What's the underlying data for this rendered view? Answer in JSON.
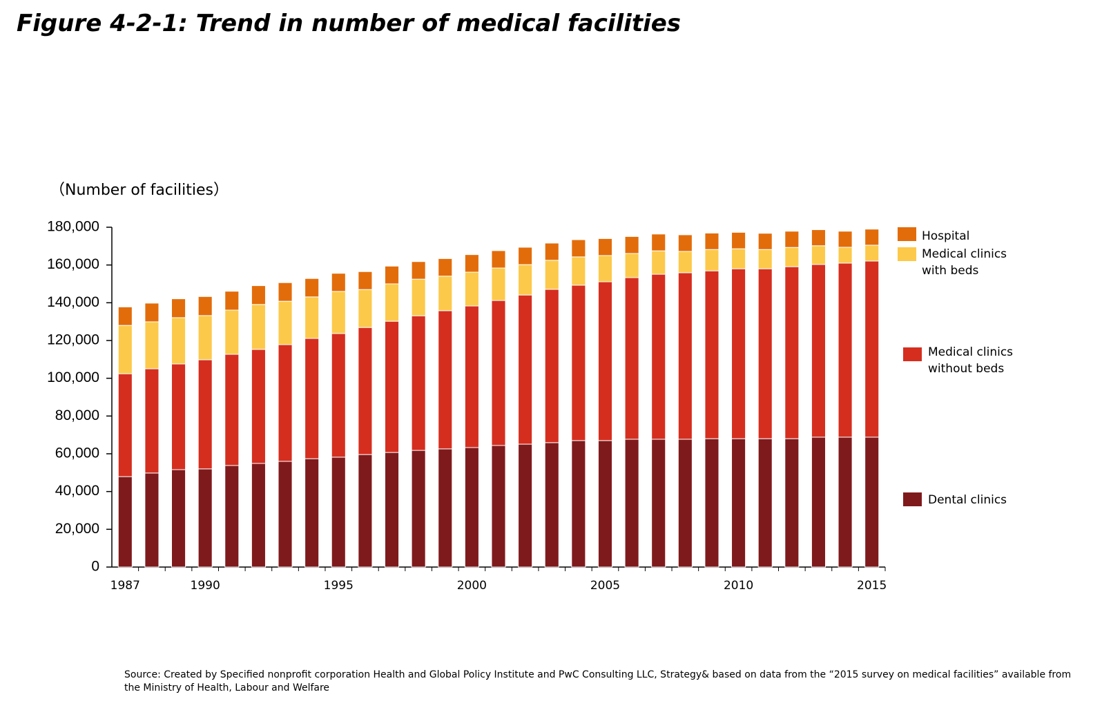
{
  "chart_data": {
    "type": "stacked_bar",
    "title": "Figure 4-2-1: Trend in number of medical facilities",
    "y_label": "（Number of facilities）",
    "source": "Source: Created by Specified nonprofit corporation Health and Global Policy Institute and PwC Consulting LLC, Strategy& based on data from the “2015 survey on medical facilities” available from the Ministry of Health, Labour and Welfare",
    "categories": [
      "1987",
      null,
      null,
      "1990",
      null,
      null,
      null,
      null,
      "1995",
      null,
      null,
      null,
      null,
      "2000",
      null,
      null,
      null,
      null,
      "2005",
      null,
      null,
      null,
      null,
      "2010",
      null,
      null,
      null,
      null,
      "2015"
    ],
    "series": [
      {
        "name": "Dental clinics",
        "color": "#7f1a1c",
        "values": [
          47900,
          49800,
          51600,
          52000,
          53800,
          54900,
          56000,
          57400,
          58200,
          59600,
          60700,
          61800,
          62600,
          63300,
          64400,
          65100,
          65900,
          67000,
          67000,
          67700,
          67700,
          67700,
          68000,
          68000,
          68000,
          68000,
          68800,
          68800,
          68800
        ]
      },
      {
        "name": "Medical clinics without beds",
        "color": "#d52e1f",
        "values": [
          54500,
          55200,
          56000,
          57800,
          58900,
          60400,
          61800,
          63700,
          65500,
          67300,
          69500,
          71300,
          73200,
          75000,
          76800,
          79000,
          81200,
          82300,
          84100,
          85600,
          87400,
          88200,
          88900,
          90000,
          90000,
          91100,
          91500,
          92200,
          93300
        ]
      },
      {
        "name": "Medical clinics with beds",
        "color": "#fdc94a",
        "values": [
          25600,
          24900,
          24500,
          23400,
          23400,
          23800,
          23000,
          22000,
          22300,
          20100,
          19800,
          19400,
          18300,
          17900,
          17200,
          16100,
          15400,
          15000,
          13900,
          12800,
          12400,
          11300,
          11300,
          10600,
          10200,
          10200,
          9900,
          8400,
          8400
        ]
      },
      {
        "name": "Hospital",
        "color": "#e36c0a",
        "values": [
          9800,
          9900,
          10000,
          10100,
          10000,
          9950,
          9850,
          9750,
          9600,
          9500,
          9400,
          9300,
          9300,
          9300,
          9200,
          9200,
          9100,
          9100,
          9000,
          9000,
          8900,
          8800,
          8700,
          8700,
          8600,
          8600,
          8500,
          8500,
          8500
        ]
      }
    ],
    "ylim": [
      0,
      180000
    ],
    "yticks": [
      0,
      {
        "value": 20000,
        "label": "20,000"
      },
      {
        "value": 40000,
        "label": "40,000"
      },
      {
        "value": 60000,
        "label": "60,000"
      },
      {
        "value": 80000,
        "label": "80,000"
      },
      {
        "value": 100000,
        "label": "100,000"
      },
      {
        "value": 120000,
        "label": "120,000"
      },
      {
        "value": 140000,
        "label": "140,000"
      },
      {
        "value": 160000,
        "label": "160,000"
      },
      {
        "value": 180000,
        "label": "180,000"
      }
    ],
    "grid": false
  }
}
